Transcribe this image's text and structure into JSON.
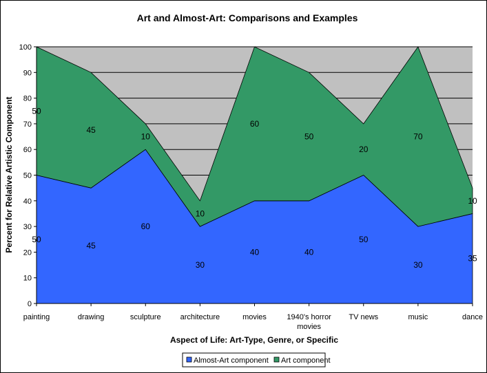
{
  "chart_data": {
    "type": "area",
    "stacked": true,
    "title": "Art and Almost-Art: Comparisons and Examples",
    "xlabel": "Aspect of Life: Art-Type, Genre, or Specific",
    "ylabel": "Percent for Relative Artistic Component",
    "ylim": [
      0,
      100
    ],
    "yticks": [
      0,
      10,
      20,
      30,
      40,
      50,
      60,
      70,
      80,
      90,
      100
    ],
    "grid": true,
    "legend": "bottom",
    "categories": [
      "painting",
      "drawing",
      "sculpture",
      "architecture",
      "movies",
      "1940's horror movies",
      "TV news",
      "music",
      "dance"
    ],
    "series": [
      {
        "name": "Almost-Art component",
        "color": "#3366FF",
        "values": [
          50,
          45,
          60,
          30,
          40,
          40,
          50,
          30,
          35
        ]
      },
      {
        "name": "Art component",
        "color": "#339966",
        "values": [
          50,
          45,
          10,
          10,
          60,
          50,
          20,
          70,
          10
        ]
      }
    ],
    "plot_background": "#C0C0C0"
  }
}
